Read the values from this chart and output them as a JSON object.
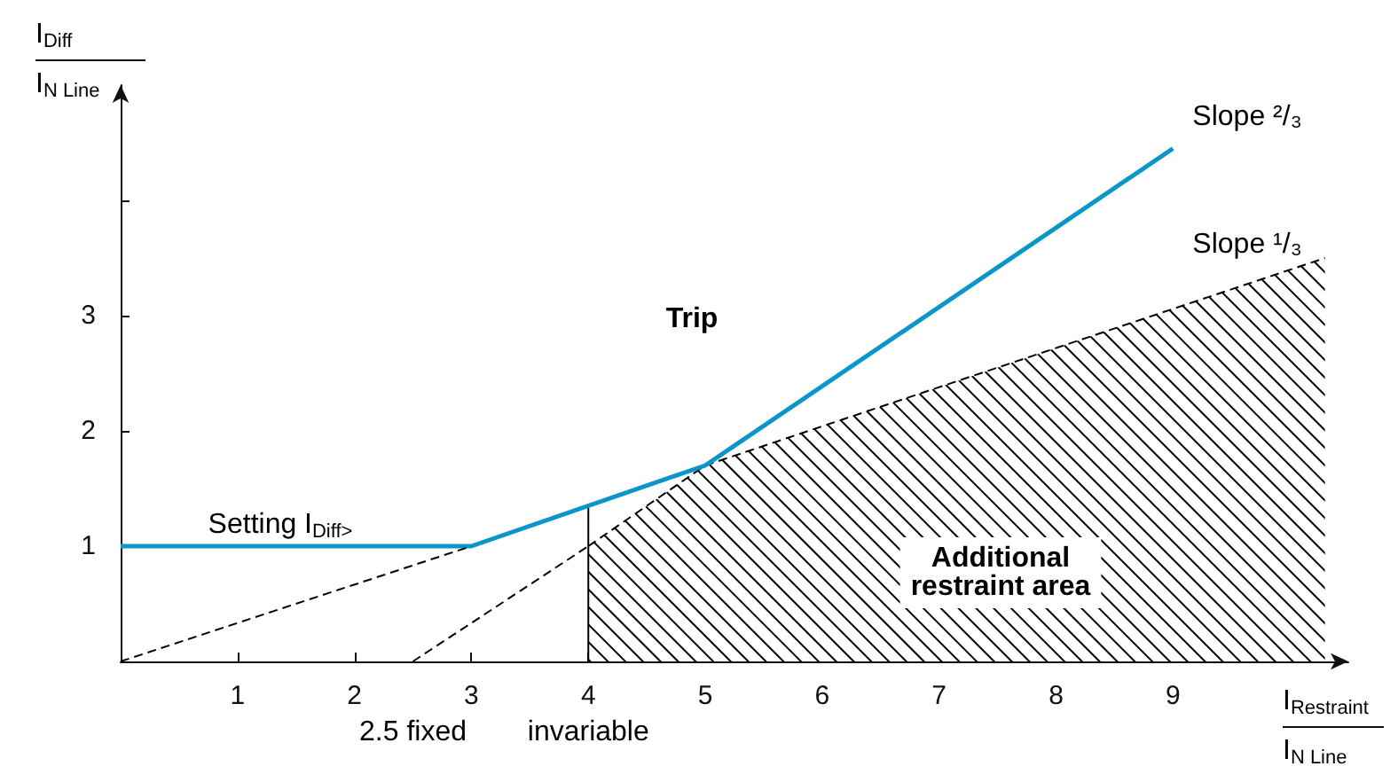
{
  "chart_data": {
    "type": "line",
    "xlabel": "I$_{Restraint}$\nI$_{N Line}$",
    "ylabel": "I$_{Diff}$\nI$_{N Line}$",
    "xlim": [
      0,
      10.5
    ],
    "xticks": [
      1,
      2,
      3,
      4,
      5,
      6,
      7,
      8,
      9
    ],
    "ylim": [
      0,
      5
    ],
    "yticks": [
      1,
      2,
      3,
      {
        "value": 4,
        "label": null
      }
    ],
    "grid": false,
    "marker": "none",
    "series": [
      {
        "type": "area",
        "color": "#000000",
        "x": [
          4,
          5,
          10.3
        ],
        "values": [
          1,
          1.7,
          3.5
        ],
        "line_style": "dashed"
      },
      {
        "color": "#000000",
        "x": [
          0,
          3
        ],
        "values": [
          0,
          1
        ],
        "line_style": "dashed"
      },
      {
        "color": "#000000",
        "x": [
          2.5,
          4
        ],
        "values": [
          0,
          1
        ],
        "line_style": "dashed"
      },
      {
        "color": "#000000",
        "x": [
          4,
          4
        ],
        "values": [
          0,
          1.35
        ],
        "line_style": "solid"
      },
      {
        "color": "#0a96c8",
        "x": [
          0,
          3,
          5,
          9
        ],
        "values": [
          1,
          1,
          1.7,
          4.45
        ],
        "line_style": "solid"
      }
    ],
    "annotations": [
      "Setting I$_{Diff>}$",
      "Slope ²/₃",
      "Slope ¹/₃",
      "Trip",
      "Additional\nrestraint area",
      {
        "text": "2.5 fixed",
        "x": 2.5,
        "y": 0
      },
      {
        "text": "invariable",
        "x": 4,
        "y": 0
      }
    ]
  }
}
